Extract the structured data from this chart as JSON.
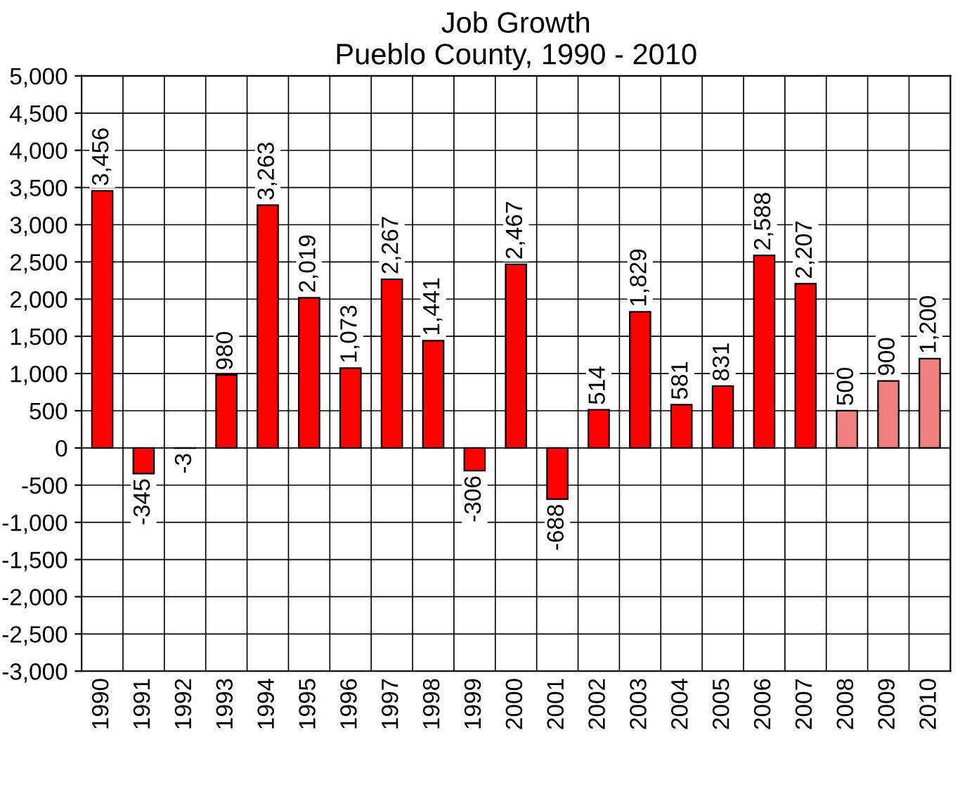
{
  "chart_data": {
    "type": "bar",
    "title": "Job Growth\nPueblo County, 1990 - 2010",
    "categories": [
      "1990",
      "1991",
      "1992",
      "1993",
      "1994",
      "1995",
      "1996",
      "1997",
      "1998",
      "1999",
      "2000",
      "2001",
      "2002",
      "2003",
      "2004",
      "2005",
      "2006",
      "2007",
      "2008",
      "2009",
      "2010"
    ],
    "values": [
      3456,
      -345,
      -3,
      980,
      3263,
      2019,
      1073,
      2267,
      1441,
      -306,
      2467,
      -688,
      514,
      1829,
      581,
      831,
      2588,
      2207,
      500,
      900,
      1200
    ],
    "value_labels": [
      "3,456",
      "-345",
      "-3",
      "980",
      "3,263",
      "2,019",
      "1,073",
      "2,267",
      "1,441",
      "-306",
      "2,467",
      "-688",
      "514",
      "1,829",
      "581",
      "831",
      "2,588",
      "2,207",
      "500",
      "900",
      "1,200"
    ],
    "colors": [
      "#ff0000",
      "#ff0000",
      "#ff0000",
      "#ff0000",
      "#ff0000",
      "#ff0000",
      "#ff0000",
      "#ff0000",
      "#ff0000",
      "#ff0000",
      "#ff0000",
      "#ff0000",
      "#ff0000",
      "#ff0000",
      "#ff0000",
      "#ff0000",
      "#ff0000",
      "#ff0000",
      "#f07f7f",
      "#f07f7f",
      "#f07f7f"
    ],
    "ylim": [
      -3000,
      5000
    ],
    "yticks": [
      {
        "value": -3000,
        "label": "-3,000"
      },
      {
        "value": -2500,
        "label": "-2,500"
      },
      {
        "value": -2000,
        "label": "-2,000"
      },
      {
        "value": -1500,
        "label": "-1,500"
      },
      {
        "value": -1000,
        "label": "-1,000"
      },
      {
        "value": -500,
        "label": "-500"
      },
      0,
      500,
      {
        "value": 1000,
        "label": "1,000"
      },
      {
        "value": 1500,
        "label": "1,500"
      },
      {
        "value": 2000,
        "label": "2,000"
      },
      {
        "value": 2500,
        "label": "2,500"
      },
      {
        "value": 3000,
        "label": "3,000"
      },
      {
        "value": 3500,
        "label": "3,500"
      },
      {
        "value": 4000,
        "label": "4,000"
      },
      {
        "value": 4500,
        "label": "4,500"
      },
      {
        "value": 5000,
        "label": "5,000"
      }
    ],
    "grid": true
  }
}
